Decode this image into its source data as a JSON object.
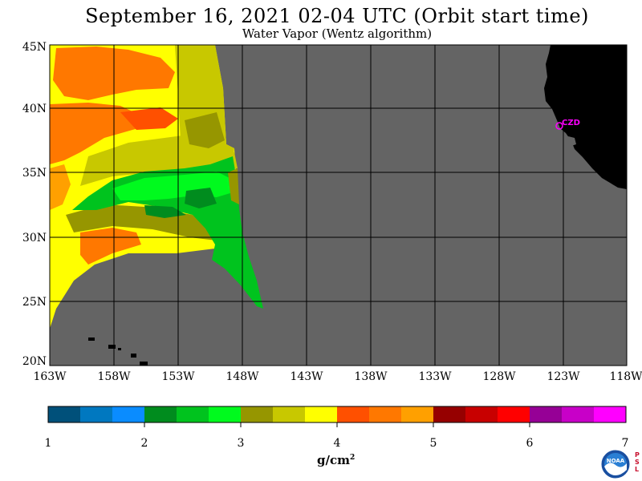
{
  "title": "September 16, 2021  02-04 UTC  (Orbit start time)",
  "subtitle": "Water Vapor (Wentz algorithm)",
  "map": {
    "lon_labels": [
      "163W",
      "158W",
      "153W",
      "148W",
      "143W",
      "138W",
      "133W",
      "128W",
      "123W",
      "118W"
    ],
    "lat_labels": [
      "45N",
      "40N",
      "35N",
      "30N",
      "25N",
      "20N"
    ],
    "station_label": "CZD",
    "colors": {
      "background": "#ffffff",
      "no_data": "#646464",
      "land": "#000000",
      "grid": "#000000",
      "station": "#ff00ff"
    }
  },
  "colorbar": {
    "ticks": [
      "1",
      "2",
      "3",
      "4",
      "5",
      "6",
      "7"
    ],
    "units": "g/cm",
    "units_sup": "2",
    "colors": [
      "#00507a",
      "#0078c0",
      "#0a8cff",
      "#008c1e",
      "#00c31e",
      "#00fa1e",
      "#969600",
      "#c8c800",
      "#ffff00",
      "#ff5000",
      "#ff7800",
      "#ffa000",
      "#960000",
      "#c80000",
      "#ff0000",
      "#960096",
      "#c800c8",
      "#ff00ff"
    ]
  },
  "logo": {
    "text": "NOAA",
    "side_text": "PSL"
  }
}
